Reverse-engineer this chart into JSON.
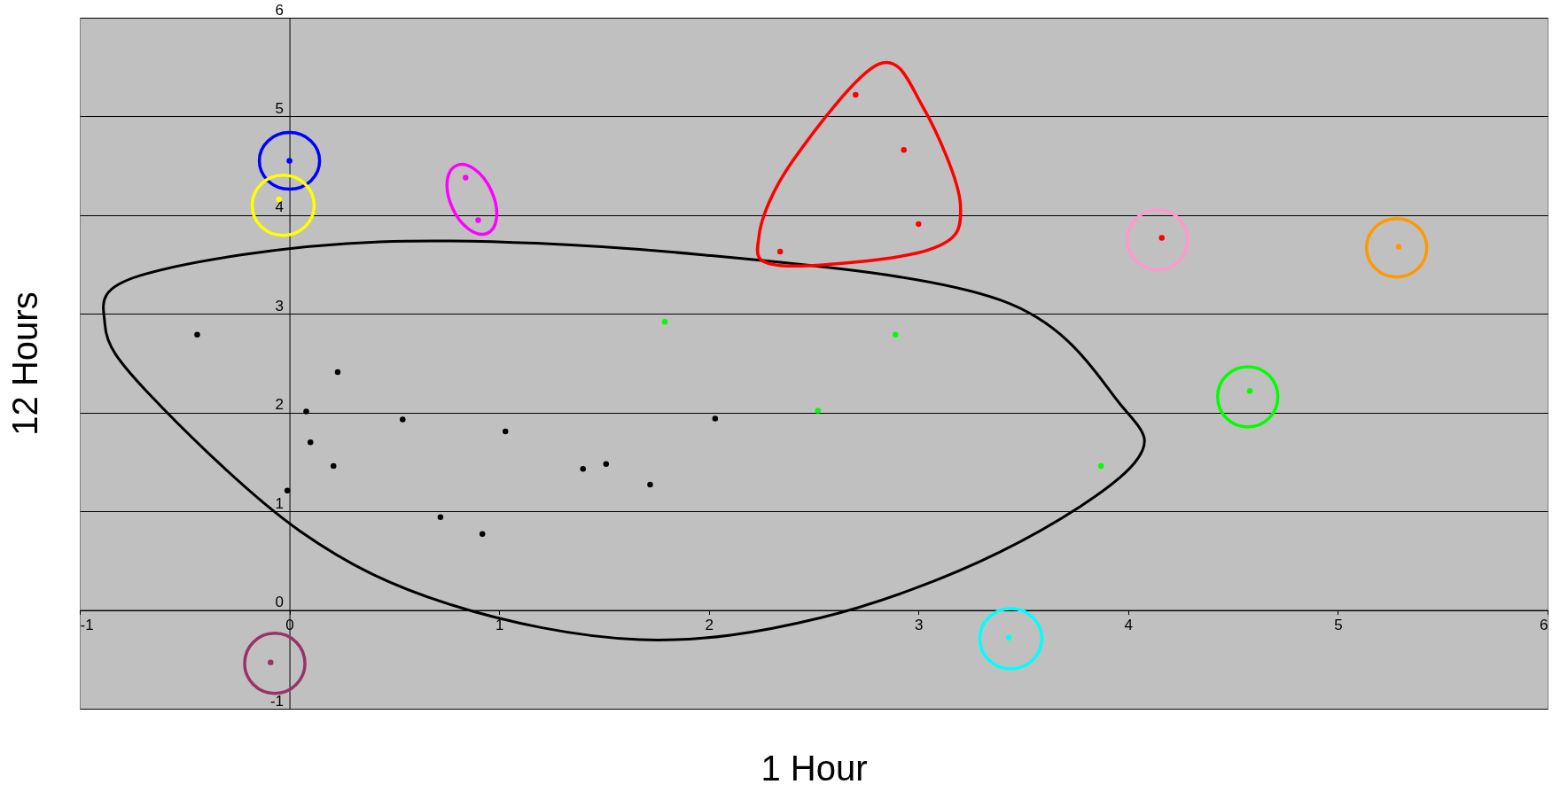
{
  "chart_data": {
    "type": "scatter",
    "xlabel": "1 Hour",
    "ylabel": "12 Hours",
    "xlim": [
      -1,
      6
    ],
    "ylim": [
      -1,
      6
    ],
    "xticks": [
      -1,
      0,
      1,
      2,
      3,
      4,
      5,
      6
    ],
    "yticks": [
      -1,
      0,
      1,
      2,
      3,
      4,
      5,
      6
    ],
    "grid": "y",
    "marker": "circle",
    "series": [
      {
        "color": "#000000",
        "x": [
          -0.44,
          0.08,
          0.1,
          0.23,
          -0.01,
          0.21,
          0.54,
          0.72,
          0.92,
          1.03,
          1.4,
          1.51,
          1.72,
          2.03
        ],
        "values": [
          2.79,
          2.01,
          1.7,
          2.41,
          1.21,
          1.46,
          1.93,
          0.94,
          0.77,
          1.81,
          1.43,
          1.48,
          1.27,
          1.94
        ]
      },
      {
        "color": "#00ff00",
        "x": [
          1.79,
          2.52,
          2.89,
          3.87,
          4.58
        ],
        "values": [
          2.92,
          2.02,
          2.79,
          1.46,
          2.22
        ]
      },
      {
        "color": "#ff0000",
        "x": [
          2.34,
          2.7,
          2.93,
          3.0,
          4.16
        ],
        "values": [
          3.63,
          5.22,
          4.66,
          3.91,
          3.77
        ]
      },
      {
        "color": "#ff9900",
        "x": [
          5.29
        ],
        "values": [
          3.68
        ]
      },
      {
        "color": "#00ffff",
        "x": [
          3.43
        ],
        "values": [
          -0.28
        ]
      },
      {
        "color": "#993366",
        "x": [
          -0.09
        ],
        "values": [
          -0.53
        ]
      },
      {
        "color": "#0000ff",
        "x": [
          0.0
        ],
        "values": [
          4.55
        ]
      },
      {
        "color": "#ffff00",
        "x": [
          -0.05
        ],
        "values": [
          4.16
        ]
      },
      {
        "color": "#ff00ff",
        "x": [
          0.84,
          0.9
        ],
        "values": [
          4.38,
          3.95
        ]
      }
    ]
  }
}
